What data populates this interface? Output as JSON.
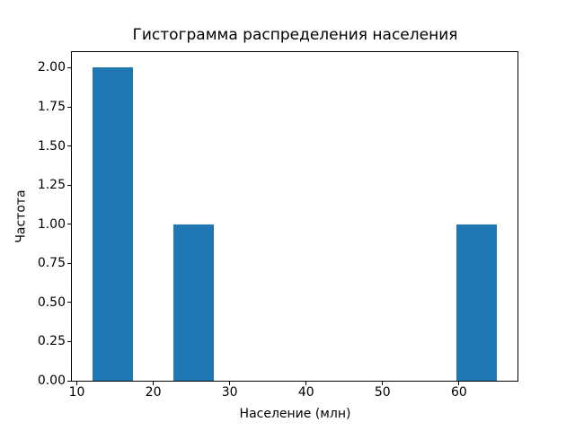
{
  "chart_data": {
    "type": "bar",
    "subtype": "histogram",
    "title": "Гистограмма распределения населения",
    "xlabel": "Население (млн)",
    "ylabel": "Частота",
    "bar_color": "#1f77b4",
    "text_color": "#000000",
    "background_color": "#ffffff",
    "grid": false,
    "legend": null,
    "axes": {
      "xlim": [
        9.35,
        67.65
      ],
      "ylim": [
        0,
        2.1
      ]
    },
    "x_ticks": [
      {
        "value": 10,
        "label": "10"
      },
      {
        "value": 20,
        "label": "20"
      },
      {
        "value": 30,
        "label": "30"
      },
      {
        "value": 40,
        "label": "40"
      },
      {
        "value": 50,
        "label": "50"
      },
      {
        "value": 60,
        "label": "60"
      }
    ],
    "y_ticks": [
      {
        "value": 0.0,
        "label": "0.00"
      },
      {
        "value": 0.25,
        "label": "0.25"
      },
      {
        "value": 0.5,
        "label": "0.50"
      },
      {
        "value": 0.75,
        "label": "0.75"
      },
      {
        "value": 1.0,
        "label": "1.00"
      },
      {
        "value": 1.25,
        "label": "1.25"
      },
      {
        "value": 1.5,
        "label": "1.50"
      },
      {
        "value": 1.75,
        "label": "1.75"
      },
      {
        "value": 2.0,
        "label": "2.00"
      }
    ],
    "bars": [
      {
        "bin_start": 12.0,
        "bin_end": 17.3,
        "frequency": 2
      },
      {
        "bin_start": 22.6,
        "bin_end": 27.9,
        "frequency": 1
      },
      {
        "bin_start": 59.7,
        "bin_end": 65.0,
        "frequency": 1
      }
    ]
  }
}
